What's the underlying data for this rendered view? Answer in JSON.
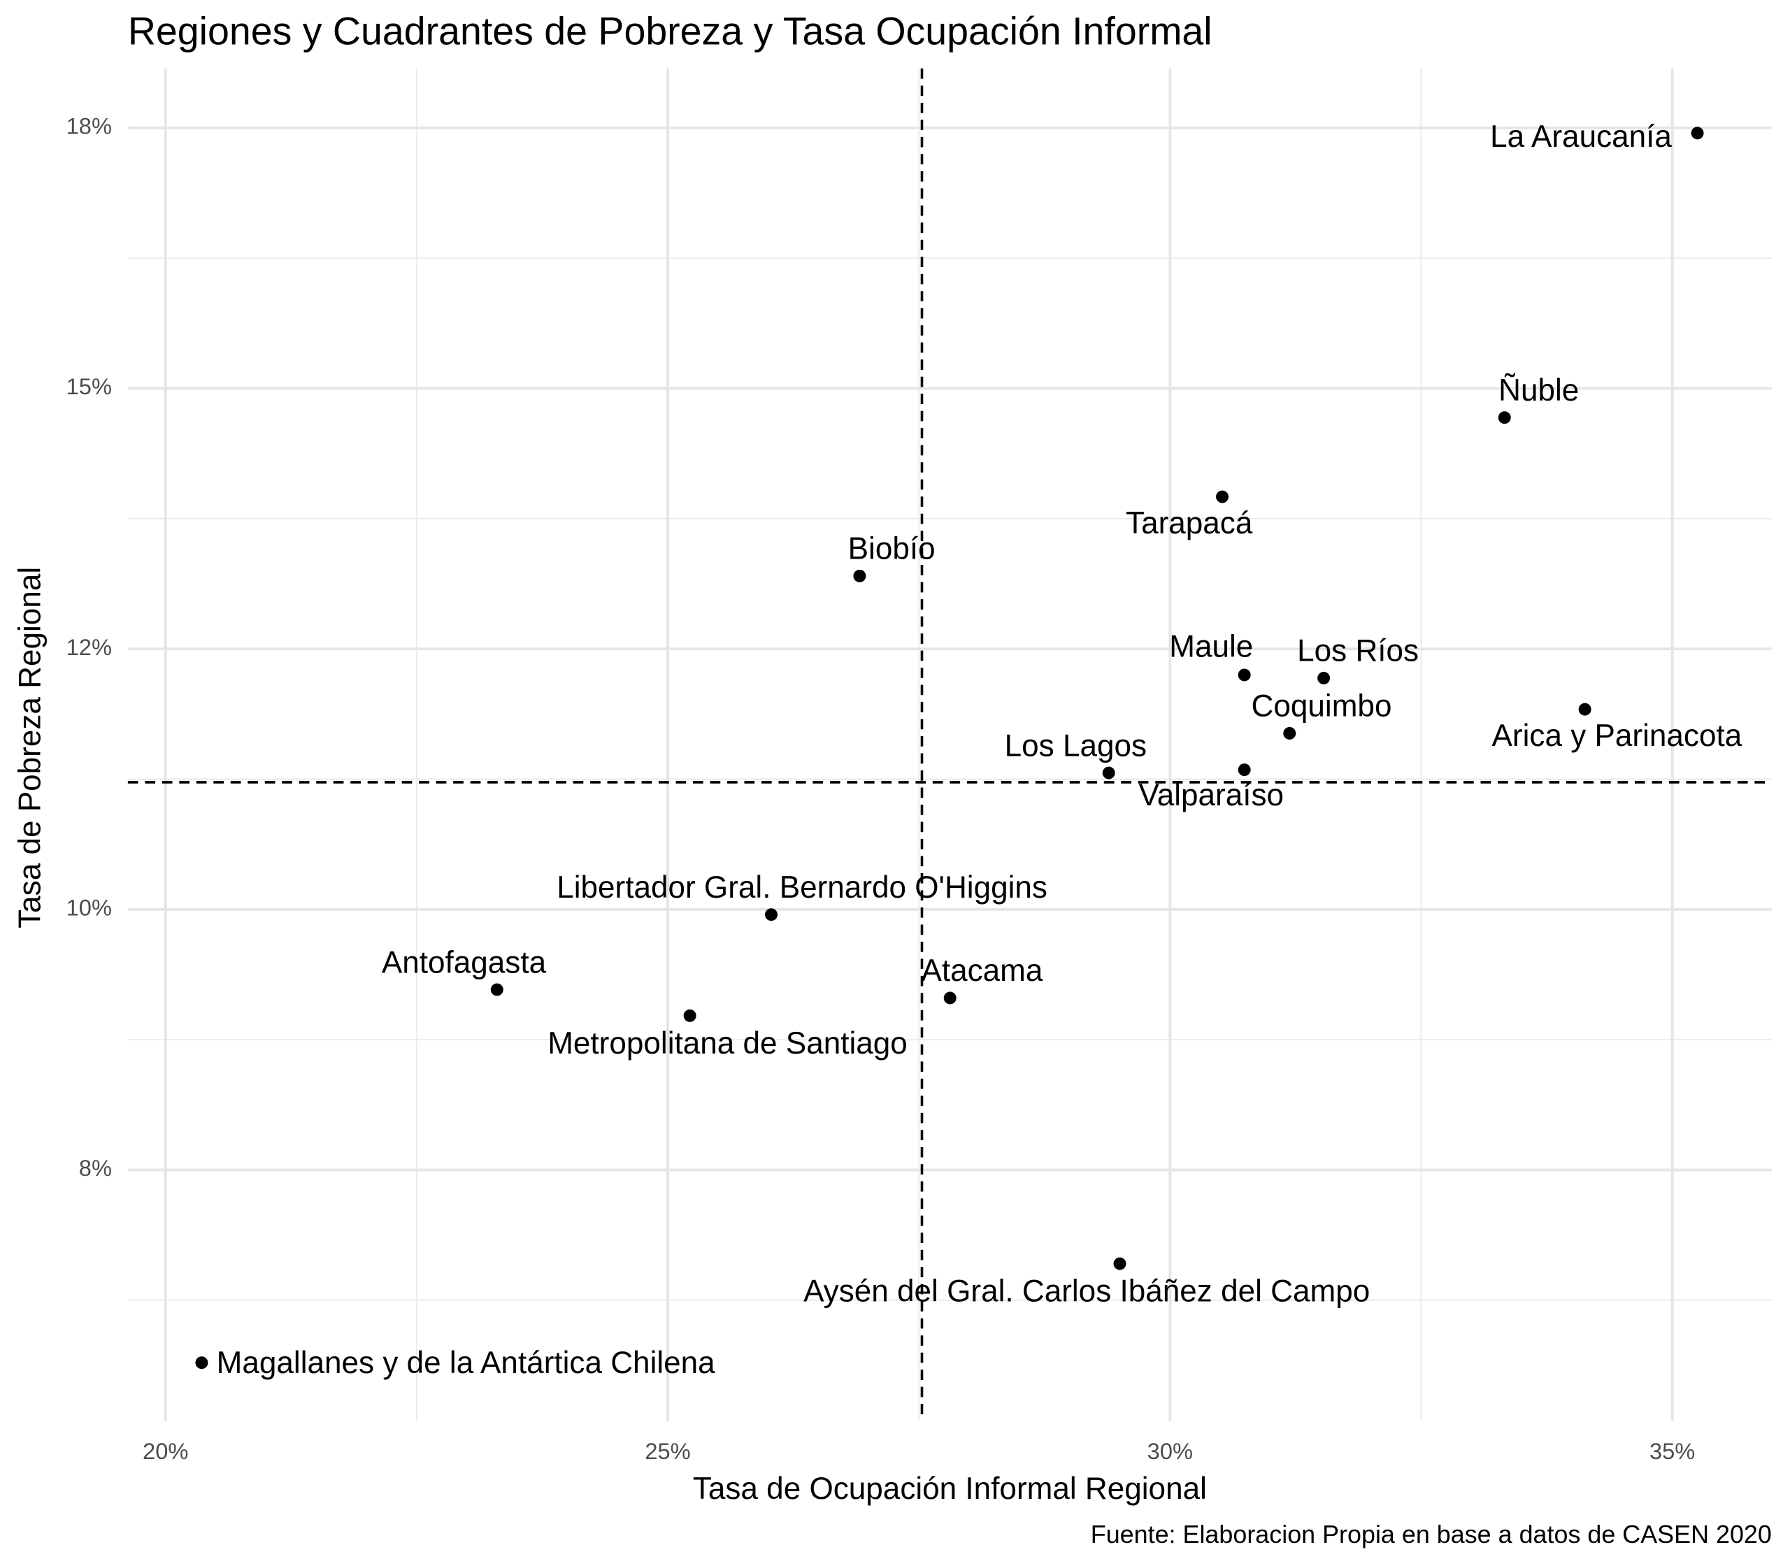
{
  "chart_data": {
    "type": "scatter",
    "title": "Regiones y Cuadrantes de Pobreza y Tasa Ocupación Informal",
    "x_label": "Tasa de Ocupación Informal Regional",
    "y_label": "Tasa de Pobreza Regional",
    "caption": "Fuente: Elaboracion Propia en base a datos de CASEN 2020",
    "labels": [
      "La Araucanía",
      "Ñuble",
      "Tarapacá",
      "Biobío",
      "Maule",
      "Los Ríos",
      "Arica y Parinacota",
      "Coquimbo",
      "Los Lagos",
      "Valparaíso",
      "Libertador Gral. Bernardo O'Higgins",
      "Antofagasta",
      "Metropolitana de Santiago",
      "Atacama",
      "Aysén del Gral. Carlos Ibáñez del Campo",
      "Magallanes y de la Antártica Chilena"
    ],
    "x": [
      35.25,
      33.33,
      30.52,
      26.91,
      30.74,
      31.53,
      34.13,
      31.19,
      29.39,
      30.74,
      26.03,
      23.3,
      25.22,
      27.81,
      29.5,
      20.36
    ],
    "values": [
      17.45,
      14.72,
      13.96,
      13.2,
      12.25,
      12.22,
      11.92,
      11.69,
      11.31,
      11.34,
      9.95,
      9.23,
      8.98,
      9.15,
      6.6,
      5.65
    ],
    "color": "#000000",
    "vline": 27.53,
    "hline": 11.22,
    "xlim": [
      19.625,
      35.99
    ],
    "ylim": [
      5.09,
      18.07
    ],
    "xticks": [
      {
        "value": 20,
        "label": "20%"
      },
      {
        "value": 25,
        "label": "25%"
      },
      {
        "value": 30,
        "label": "30%"
      },
      {
        "value": 35,
        "label": "35%"
      }
    ],
    "yticks": [
      {
        "value": 7.5,
        "label": "8%"
      },
      {
        "value": 10,
        "label": "10%"
      },
      {
        "value": 12.5,
        "label": "12%"
      },
      {
        "value": 15,
        "label": "15%"
      },
      {
        "value": 17.5,
        "label": "18%"
      }
    ],
    "grid": true
  }
}
